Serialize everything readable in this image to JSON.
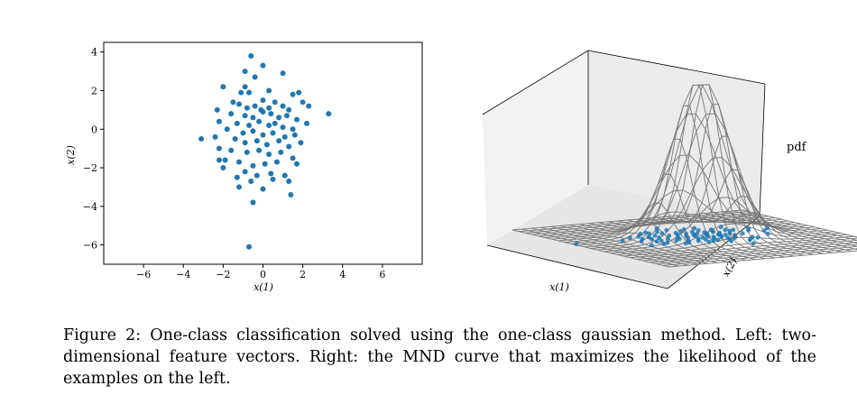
{
  "chart_data": [
    {
      "type": "scatter",
      "title": "",
      "xlabel": "x(1)",
      "ylabel": "x(2)",
      "xlim": [
        -8,
        8
      ],
      "ylim": [
        -7,
        4.5
      ],
      "xticks": [
        -6,
        -4,
        -2,
        0,
        2,
        4,
        6
      ],
      "yticks": [
        4,
        2,
        0,
        -2,
        -4,
        -6
      ],
      "marker_color": "#1f77b4",
      "points": [
        [
          -0.6,
          3.8
        ],
        [
          0.0,
          3.3
        ],
        [
          -0.9,
          3.0
        ],
        [
          -0.4,
          2.7
        ],
        [
          1.0,
          2.9
        ],
        [
          -2.0,
          2.2
        ],
        [
          -0.9,
          2.2
        ],
        [
          0.3,
          2.0
        ],
        [
          -1.1,
          1.9
        ],
        [
          -0.7,
          1.9
        ],
        [
          0.0,
          1.5
        ],
        [
          1.5,
          1.8
        ],
        [
          1.8,
          1.9
        ],
        [
          -1.5,
          1.4
        ],
        [
          -2.3,
          1.0
        ],
        [
          -1.2,
          1.3
        ],
        [
          -0.8,
          1.1
        ],
        [
          -0.4,
          1.2
        ],
        [
          -0.1,
          1.0
        ],
        [
          0.3,
          1.1
        ],
        [
          0.6,
          1.4
        ],
        [
          1.0,
          1.2
        ],
        [
          1.3,
          1.0
        ],
        [
          2.0,
          1.4
        ],
        [
          2.3,
          1.2
        ],
        [
          -1.6,
          0.8
        ],
        [
          -0.9,
          0.7
        ],
        [
          -0.5,
          0.6
        ],
        [
          0.0,
          0.9
        ],
        [
          0.4,
          0.8
        ],
        [
          0.8,
          0.6
        ],
        [
          1.2,
          0.7
        ],
        [
          1.7,
          0.5
        ],
        [
          2.2,
          0.3
        ],
        [
          3.3,
          0.8
        ],
        [
          -2.2,
          0.4
        ],
        [
          -1.3,
          0.3
        ],
        [
          -0.7,
          0.2
        ],
        [
          -0.2,
          0.4
        ],
        [
          0.3,
          0.2
        ],
        [
          0.6,
          0.3
        ],
        [
          1.0,
          0.1
        ],
        [
          1.5,
          0.0
        ],
        [
          -1.8,
          0.0
        ],
        [
          -1.0,
          -0.2
        ],
        [
          -0.5,
          -0.1
        ],
        [
          0.0,
          -0.3
        ],
        [
          0.5,
          -0.2
        ],
        [
          1.1,
          -0.4
        ],
        [
          1.6,
          -0.3
        ],
        [
          -3.1,
          -0.5
        ],
        [
          -2.4,
          -0.4
        ],
        [
          -1.4,
          -0.5
        ],
        [
          -0.9,
          -0.7
        ],
        [
          -0.3,
          -0.6
        ],
        [
          0.2,
          -0.8
        ],
        [
          0.8,
          -0.6
        ],
        [
          1.3,
          -0.9
        ],
        [
          1.9,
          -0.7
        ],
        [
          -2.2,
          -1.0
        ],
        [
          -1.6,
          -1.1
        ],
        [
          -0.8,
          -1.2
        ],
        [
          -0.2,
          -1.1
        ],
        [
          0.3,
          -1.3
        ],
        [
          0.9,
          -1.2
        ],
        [
          1.5,
          -1.5
        ],
        [
          -1.9,
          -1.6
        ],
        [
          -1.2,
          -1.7
        ],
        [
          -0.5,
          -1.9
        ],
        [
          0.1,
          -1.8
        ],
        [
          0.7,
          -1.7
        ],
        [
          1.7,
          -1.8
        ],
        [
          -2.2,
          -1.6
        ],
        [
          -0.9,
          -2.2
        ],
        [
          -0.3,
          -2.4
        ],
        [
          0.4,
          -2.3
        ],
        [
          1.1,
          -2.4
        ],
        [
          -2.0,
          -2.0
        ],
        [
          -1.3,
          -2.5
        ],
        [
          -0.6,
          -2.7
        ],
        [
          0.5,
          -2.6
        ],
        [
          1.3,
          -2.7
        ],
        [
          -1.2,
          -3.0
        ],
        [
          0.0,
          -3.1
        ],
        [
          1.4,
          -3.4
        ],
        [
          -0.5,
          -3.8
        ],
        [
          -0.7,
          -6.1
        ]
      ]
    },
    {
      "type": "surface3d",
      "title": "",
      "xlabel": "x(1)",
      "ylabel": "x(2)",
      "zlabel": "pdf",
      "surface": "multivariate normal density, single peak",
      "surface_color": "#777777",
      "marker_color": "#1f77b4"
    }
  ],
  "caption": "Figure 2: One-class classification solved using the one-class gaussian method. Left: two-dimensional feature vectors. Right: the MND curve that maximizes the likelihood of the examples on the left."
}
